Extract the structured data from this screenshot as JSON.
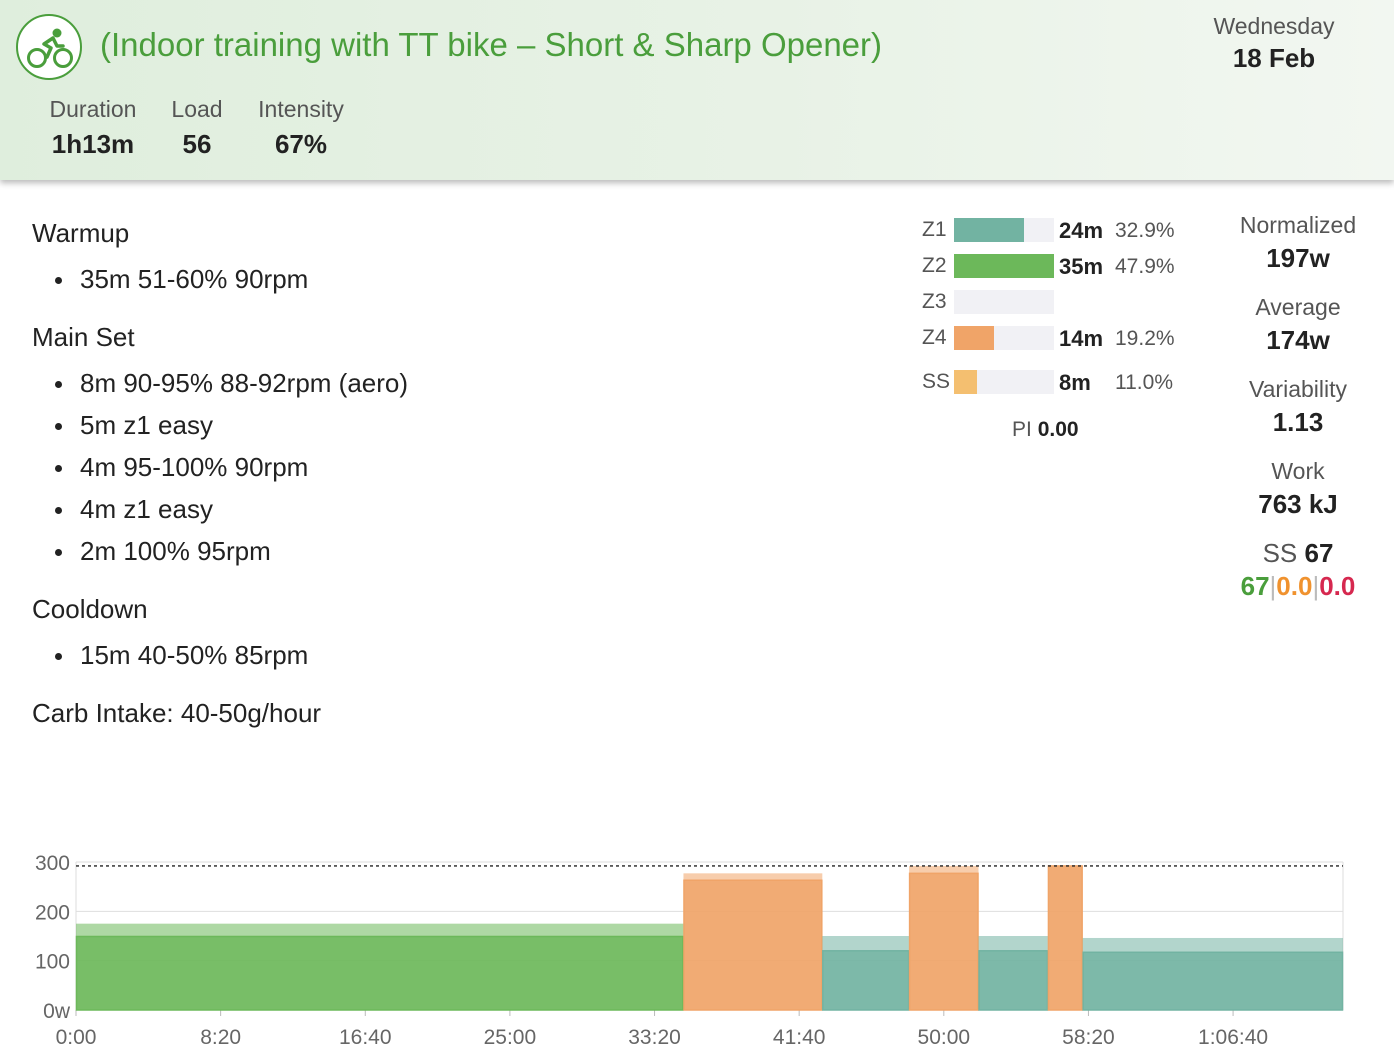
{
  "header": {
    "sport_icon": "bike-icon",
    "title": "(Indoor training with TT bike – Short & Sharp Opener)",
    "weekday": "Wednesday",
    "date": "18 Feb",
    "accent_color": "#4a9e3c",
    "stats": [
      {
        "label": "Duration",
        "value": "1h13m"
      },
      {
        "label": "Load",
        "value": "56"
      },
      {
        "label": "Intensity",
        "value": "67%"
      }
    ]
  },
  "description": {
    "warmup": {
      "title": "Warmup",
      "steps": [
        "35m 51-60% 90rpm"
      ]
    },
    "main_set": {
      "title": "Main Set",
      "steps": [
        "8m 90-95% 88-92rpm (aero)",
        "5m z1 easy",
        "4m 95-100% 90rpm",
        "4m z1 easy",
        "2m 100% 95rpm"
      ]
    },
    "cooldown": {
      "title": "Cooldown",
      "steps": [
        "15m 40-50% 85rpm"
      ]
    },
    "carb_intake": "Carb Intake: 40-50g/hour"
  },
  "zones": [
    {
      "name": "Z1",
      "time": "24m",
      "percent": "32.9%",
      "fraction": 0.7,
      "color": "#72b3a2"
    },
    {
      "name": "Z2",
      "time": "35m",
      "percent": "47.9%",
      "fraction": 1.0,
      "color": "#6cb85a"
    },
    {
      "name": "Z3",
      "time": "",
      "percent": "",
      "fraction": 0,
      "color": "#e0b84a"
    },
    {
      "name": "Z4",
      "time": "14m",
      "percent": "19.2%",
      "fraction": 0.4,
      "color": "#f0a468"
    },
    {
      "name": "SS",
      "time": "8m",
      "percent": "11.0%",
      "fraction": 0.23,
      "color": "#f4bf70"
    }
  ],
  "pi": {
    "label": "PI",
    "value": "0.00"
  },
  "power_stats": [
    {
      "label": "Normalized",
      "value": "197w"
    },
    {
      "label": "Average",
      "value": "174w"
    },
    {
      "label": "Variability",
      "value": "1.13"
    },
    {
      "label": "Work",
      "value": "763 kJ"
    }
  ],
  "strain": {
    "label": "SS",
    "value": "67",
    "split": [
      {
        "value": "67",
        "color": "#4a9e3c"
      },
      {
        "value": "0.0",
        "color": "#f0922e"
      },
      {
        "value": "0.0",
        "color": "#d6284f"
      }
    ]
  },
  "chart_data": {
    "type": "bar",
    "ylabel": "",
    "ylim": [
      0,
      300
    ],
    "y_ticks": [
      "0w",
      "100",
      "200",
      "300"
    ],
    "x_ticks": [
      "0:00",
      "8:20",
      "16:40",
      "25:00",
      "33:20",
      "41:40",
      "50:00",
      "58:20",
      "1:06:40"
    ],
    "x_tick_seconds": [
      0,
      500,
      1000,
      1500,
      2000,
      2500,
      3000,
      3500,
      4000
    ],
    "x_max_seconds": 4380,
    "ftp_line": 292,
    "intervals": [
      {
        "start": 0,
        "end": 2100,
        "low": 149,
        "high": 175,
        "color": "#6cb85a"
      },
      {
        "start": 2100,
        "end": 2580,
        "low": 263,
        "high": 277,
        "color": "#f0a468"
      },
      {
        "start": 2580,
        "end": 2880,
        "low": 120,
        "high": 150,
        "color": "#72b3a2"
      },
      {
        "start": 2880,
        "end": 3120,
        "low": 277,
        "high": 292,
        "color": "#f0a468"
      },
      {
        "start": 3120,
        "end": 3360,
        "low": 120,
        "high": 150,
        "color": "#72b3a2"
      },
      {
        "start": 3360,
        "end": 3480,
        "low": 292,
        "high": 292,
        "color": "#f0a468"
      },
      {
        "start": 3480,
        "end": 4380,
        "low": 117,
        "high": 146,
        "color": "#72b3a2"
      }
    ]
  }
}
